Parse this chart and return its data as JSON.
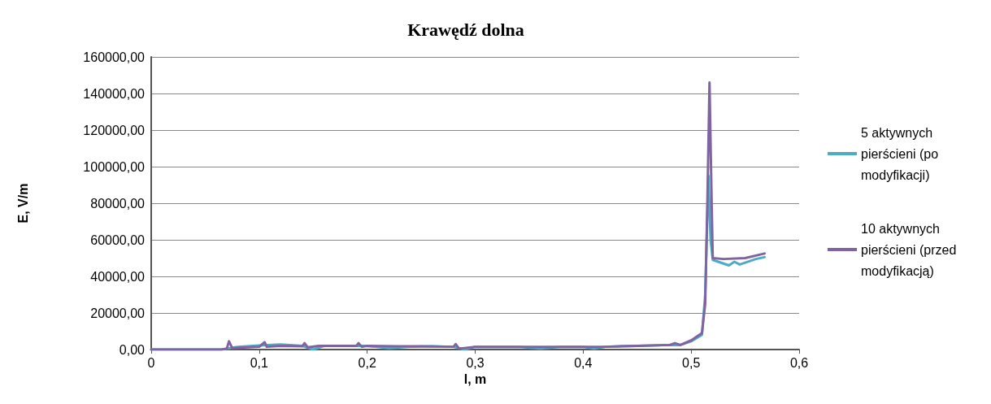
{
  "chart_data": {
    "type": "line",
    "title": "Krawędź dolna",
    "xlabel": "l, m",
    "ylabel": "E, V/m",
    "xlim": [
      0,
      0.6
    ],
    "xticks": [
      {
        "value": 0,
        "label": "0"
      },
      {
        "value": 0.1,
        "label": "0,1"
      },
      {
        "value": 0.2,
        "label": "0,2"
      },
      {
        "value": 0.3,
        "label": "0,3"
      },
      {
        "value": 0.4,
        "label": "0,4"
      },
      {
        "value": 0.5,
        "label": "0,5"
      },
      {
        "value": 0.6,
        "label": "0,6"
      }
    ],
    "ylim": [
      0,
      160000
    ],
    "yticks": [
      {
        "value": 0,
        "label": "0,00"
      },
      {
        "value": 20000,
        "label": "20000,00"
      },
      {
        "value": 40000,
        "label": "40000,00"
      },
      {
        "value": 60000,
        "label": "60000,00"
      },
      {
        "value": 80000,
        "label": "80000,00"
      },
      {
        "value": 100000,
        "label": "100000,00"
      },
      {
        "value": 120000,
        "label": "120000,00"
      },
      {
        "value": 140000,
        "label": "140000,00"
      },
      {
        "value": 160000,
        "label": "160000,00"
      }
    ],
    "grid": "y",
    "legend": "right",
    "marker": "none",
    "line_style": "solid",
    "series": [
      {
        "name": "5 aktywnych pierścieni (po modyfikacji)",
        "color": "#4bacc6",
        "x": [
          0,
          0.065,
          0.08,
          0.1,
          0.12,
          0.14,
          0.15,
          0.16,
          0.2,
          0.22,
          0.24,
          0.26,
          0.28,
          0.29,
          0.3,
          0.34,
          0.36,
          0.38,
          0.4,
          0.41,
          0.42,
          0.45,
          0.48,
          0.49,
          0.5,
          0.51,
          0.513,
          0.516,
          0.518,
          0.52,
          0.53,
          0.535,
          0.54,
          0.545,
          0.55,
          0.56,
          0.568
        ],
        "values": [
          0,
          0,
          1500,
          2200,
          2800,
          2000,
          0,
          2000,
          2000,
          800,
          1500,
          1800,
          1500,
          0,
          1500,
          1500,
          500,
          1500,
          1500,
          500,
          1500,
          2000,
          2500,
          2500,
          4500,
          8000,
          30000,
          95000,
          60000,
          49000,
          47000,
          46000,
          48000,
          46500,
          47500,
          49500,
          50500
        ]
      },
      {
        "name": "10 aktywnych pierścieni (przed modyfikacją)",
        "color": "#8064a2",
        "x": [
          0,
          0.065,
          0.07,
          0.072,
          0.075,
          0.1,
          0.105,
          0.107,
          0.12,
          0.14,
          0.142,
          0.145,
          0.155,
          0.19,
          0.192,
          0.195,
          0.2,
          0.23,
          0.25,
          0.28,
          0.282,
          0.285,
          0.3,
          0.32,
          0.33,
          0.37,
          0.4,
          0.42,
          0.45,
          0.48,
          0.485,
          0.49,
          0.5,
          0.51,
          0.513,
          0.515,
          0.517,
          0.519,
          0.52,
          0.53,
          0.55,
          0.568
        ],
        "values": [
          0,
          0,
          500,
          4500,
          800,
          1500,
          4000,
          1500,
          2000,
          1800,
          3500,
          1200,
          2000,
          2000,
          3500,
          1500,
          2000,
          1800,
          1800,
          1500,
          3000,
          500,
          1500,
          1500,
          1500,
          1500,
          1500,
          1500,
          2000,
          2500,
          3500,
          2500,
          5000,
          9000,
          25000,
          80000,
          146000,
          80000,
          50000,
          49500,
          50000,
          52500
        ]
      }
    ]
  }
}
